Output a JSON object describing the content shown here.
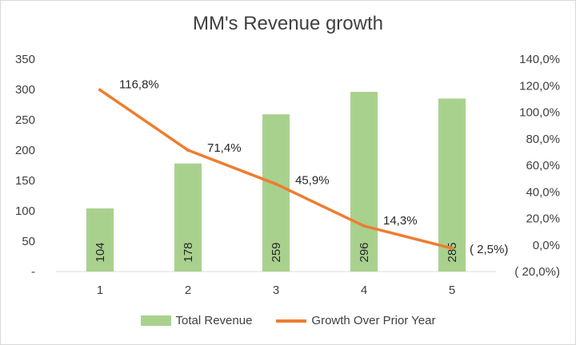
{
  "chart_data": {
    "type": "bar+line",
    "title": "MM's Revenue growth",
    "categories": [
      "1",
      "2",
      "3",
      "4",
      "5"
    ],
    "series": [
      {
        "name": "Total Revenue",
        "kind": "bar",
        "axis": "left",
        "color": "#a9d18e",
        "values": [
          104,
          178,
          259,
          296,
          285
        ],
        "labels": [
          "104",
          "178",
          "259",
          "296",
          "285"
        ]
      },
      {
        "name": "Growth Over Prior Year",
        "kind": "line",
        "axis": "right",
        "color": "#ed7d31",
        "values": [
          116.8,
          71.4,
          45.9,
          14.3,
          -2.5
        ],
        "labels": [
          "116,8%",
          "71,4%",
          "45,9%",
          "14,3%",
          "( 2,5%)"
        ]
      }
    ],
    "y_left": {
      "ylim": [
        0,
        350
      ],
      "ticks": [
        0,
        50,
        100,
        150,
        200,
        250,
        300,
        350
      ],
      "tick_labels": [
        "-",
        "50",
        "100",
        "150",
        "200",
        "250",
        "300",
        "350"
      ]
    },
    "y_right": {
      "ylim": [
        -20,
        140
      ],
      "ticks": [
        -20,
        0,
        20,
        40,
        60,
        80,
        100,
        120,
        140
      ],
      "tick_labels": [
        "( 20,0%)",
        "0,0%",
        "20,0%",
        "40,0%",
        "60,0%",
        "80,0%",
        "100,0%",
        "120,0%",
        "140,0%"
      ]
    },
    "grid": false,
    "legend_position": "bottom"
  }
}
